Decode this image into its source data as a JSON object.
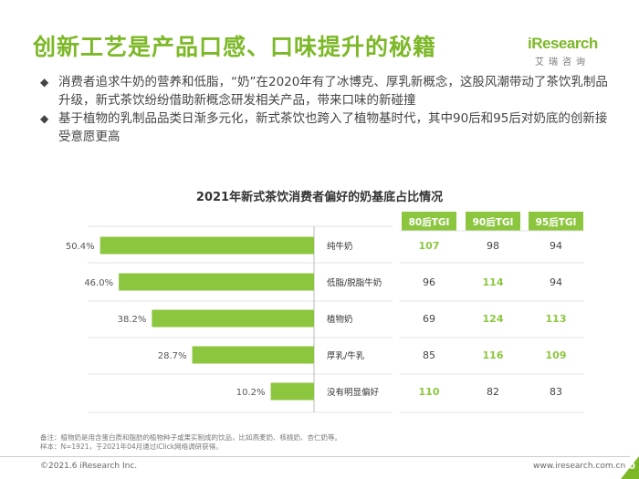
{
  "header": {
    "title": "创新工艺是产品口感、口味提升的秘籍",
    "logo_main": "iResearch",
    "logo_sub": "艾瑞咨询"
  },
  "bullets": [
    "消费者追求牛奶的营养和低脂，“奶”在2020年有了冰博克、厚乳新概念，这股风潮带动了茶饮乳制品升级，新式茶饮纷纷借助新概念研发相关产品，带来口味的新碰撞",
    "基于植物的乳制品品类日渐多元化，新式茶饮也跨入了植物基时代，其中90后和95后对奶底的创新接受意愿更高"
  ],
  "bullet_icon": "◆",
  "chart_data": {
    "type": "bar",
    "title": "2021年新式茶饮消费者偏好的奶基底占比情况",
    "orientation": "horizontal-reversed",
    "categories": [
      "纯牛奶",
      "低脂/脱脂牛奶",
      "植物奶",
      "厚乳/牛乳",
      "没有明显偏好"
    ],
    "values": [
      50.4,
      46.0,
      38.2,
      28.7,
      10.2
    ],
    "value_labels": [
      "50.4%",
      "46.0%",
      "38.2%",
      "28.7%",
      "10.2%"
    ],
    "bar_color": "#8cc63f",
    "table": {
      "columns": [
        "80后TGI",
        "90后TGI",
        "95后TGI"
      ],
      "rows": [
        [
          107,
          98,
          94
        ],
        [
          96,
          114,
          94
        ],
        [
          69,
          124,
          113
        ],
        [
          85,
          116,
          109
        ],
        [
          110,
          82,
          83
        ]
      ],
      "highlight_threshold": 100,
      "highlight_color": "#8cc63f",
      "header_color": "#8cc63f"
    }
  },
  "footnote": [
    "备注：植物奶是用含蛋白质和脂肪的植物种子或果实制成的饮品，比如燕麦奶、核桃奶、杏仁奶等。",
    "样本：N=1921，于2021年04月通过iClick网络调研获得。"
  ],
  "footer": {
    "copyright": "©2021.6 iResearch Inc.",
    "website": "www.iresearch.com.cn",
    "page_number": "10"
  }
}
